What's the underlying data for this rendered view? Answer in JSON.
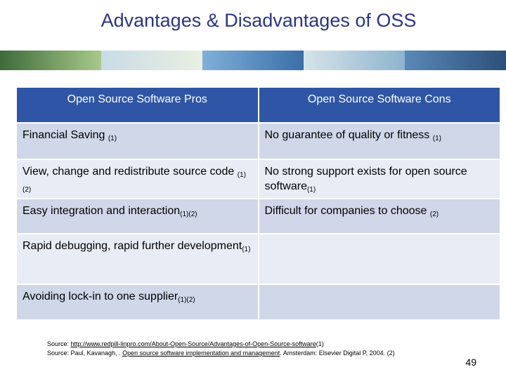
{
  "title": "Advantages & Disadvantages of OSS",
  "table": {
    "header": [
      "Open Source Software Pros",
      "Open Source Software Cons"
    ],
    "rows": [
      [
        {
          "text": "Financial Saving ",
          "sub": "(1)"
        },
        {
          "text": "No guarantee of quality or fitness ",
          "sub": "(1)"
        }
      ],
      [
        {
          "text": "View, change and redistribute source code ",
          "sub": "(1)(2)"
        },
        {
          "text": "No strong support exists for open source software",
          "sub": "(1)"
        }
      ],
      [
        {
          "text": "Easy integration and interaction",
          "sub": "(1)(2)"
        },
        {
          "text": "Difficult for companies to choose ",
          "sub": "(2)"
        }
      ],
      [
        {
          "text": "Rapid debugging, rapid further development",
          "sub": "(1)"
        }
      ],
      [
        {
          "text": "Avoiding lock-in to one supplier",
          "sub": "(1)(2)"
        }
      ]
    ]
  },
  "sources": [
    {
      "prefix": "Source: ",
      "link": "http://www.redpill-linpro.com/About-Open-Source/Advantages-of-Open-Source-software",
      "suffix": "(1)"
    },
    {
      "prefix": "Source: Paul, Kavanagh, . ",
      "link": "Open source software implementation and management",
      "suffix": ". Amsterdam: Elsevier Digital P, 2004. (2)"
    }
  ],
  "page_number": "49"
}
